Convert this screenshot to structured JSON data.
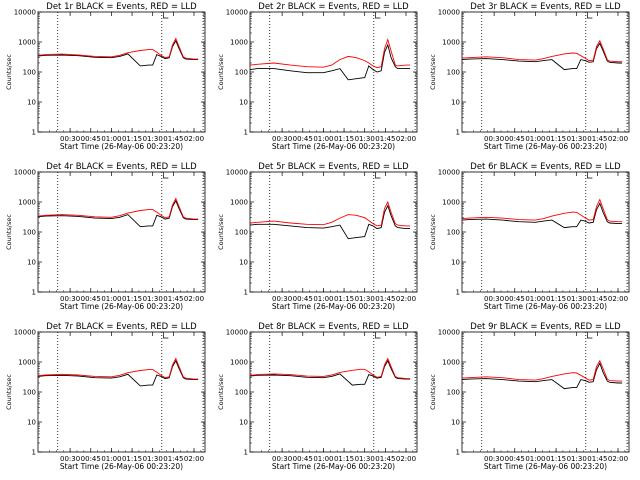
{
  "chart_data": [
    {
      "type": "line",
      "title": "Det 1r BLACK = Events, RED = LLD",
      "xlabel": "Start Time (26-May-06 00:23:20)",
      "ylabel": "Counts/sec",
      "ylog": true,
      "ylim": [
        1,
        10000
      ],
      "yticks": [
        "1",
        "10",
        "100",
        "1000",
        "10000"
      ],
      "xticks": [
        "00:30",
        "00:45",
        "01:00",
        "01:15",
        "01:30",
        "01:45",
        "02:00"
      ],
      "xlim": [
        0.1111,
        2.1333
      ],
      "x": [
        0.1111,
        0.2,
        0.4,
        0.6,
        0.8,
        1.0,
        1.1,
        1.2,
        1.35,
        1.45,
        1.5,
        1.55,
        1.6,
        1.65,
        1.7,
        1.74,
        1.78,
        1.82,
        1.87,
        1.9,
        2.0,
        2.05
      ],
      "vlines": [
        0.35,
        1.61,
        2.11
      ],
      "series": [
        {
          "name": "Events",
          "color": "#000000",
          "values": [
            340,
            360,
            370,
            350,
            310,
            300,
            330,
            400,
            160,
            170,
            170,
            380,
            330,
            280,
            300,
            700,
            1100,
            600,
            300,
            270,
            260,
            260
          ]
        },
        {
          "name": "LLD",
          "color": "#ff0000",
          "values": [
            360,
            380,
            395,
            370,
            330,
            320,
            360,
            440,
            520,
            560,
            560,
            460,
            360,
            300,
            320,
            800,
            1300,
            700,
            320,
            290,
            270,
            270
          ]
        }
      ]
    },
    {
      "type": "line",
      "title": "Det 2r BLACK = Events, RED = LLD",
      "xlabel": "Start Time (26-May-06 00:23:20)",
      "ylabel": "Counts/sec",
      "ylog": true,
      "ylim": [
        1,
        10000
      ],
      "yticks": [
        "1",
        "10",
        "100",
        "1000",
        "10000"
      ],
      "xticks": [
        "00:30",
        "00:45",
        "01:00",
        "01:15",
        "01:30",
        "01:45",
        "02:00"
      ],
      "xlim": [
        0.1111,
        2.1333
      ],
      "x": [
        0.1111,
        0.2,
        0.4,
        0.6,
        0.8,
        1.0,
        1.1,
        1.2,
        1.3,
        1.4,
        1.5,
        1.55,
        1.6,
        1.65,
        1.7,
        1.74,
        1.78,
        1.82,
        1.87,
        1.9,
        2.0,
        2.05
      ],
      "vlines": [
        0.35,
        1.61,
        2.11
      ],
      "series": [
        {
          "name": "Events",
          "color": "#000000",
          "values": [
            120,
            130,
            130,
            110,
            95,
            95,
            110,
            130,
            55,
            60,
            65,
            160,
            120,
            100,
            110,
            450,
            800,
            300,
            150,
            130,
            130,
            130
          ]
        },
        {
          "name": "LLD",
          "color": "#ff0000",
          "values": [
            170,
            180,
            200,
            170,
            150,
            145,
            170,
            260,
            330,
            300,
            240,
            200,
            160,
            140,
            150,
            600,
            1200,
            500,
            170,
            160,
            170,
            170
          ]
        }
      ]
    },
    {
      "type": "line",
      "title": "Det 3r BLACK = Events, RED = LLD",
      "xlabel": "Start Time (26-May-06 00:23:20)",
      "ylabel": "Counts/sec",
      "ylog": true,
      "ylim": [
        1,
        10000
      ],
      "yticks": [
        "1",
        "10",
        "100",
        "1000",
        "10000"
      ],
      "xticks": [
        "00:30",
        "00:45",
        "01:00",
        "01:15",
        "01:30",
        "01:45",
        "02:00"
      ],
      "xlim": [
        0.1111,
        2.1333
      ],
      "x": [
        0.1111,
        0.2,
        0.4,
        0.6,
        0.8,
        1.0,
        1.1,
        1.2,
        1.35,
        1.45,
        1.5,
        1.55,
        1.6,
        1.65,
        1.7,
        1.74,
        1.78,
        1.82,
        1.87,
        1.9,
        2.0,
        2.05
      ],
      "vlines": [
        0.35,
        1.61,
        2.11
      ],
      "series": [
        {
          "name": "Events",
          "color": "#000000",
          "values": [
            260,
            270,
            280,
            260,
            230,
            220,
            240,
            260,
            120,
            130,
            130,
            260,
            240,
            210,
            220,
            600,
            900,
            500,
            230,
            210,
            200,
            200
          ]
        },
        {
          "name": "LLD",
          "color": "#ff0000",
          "values": [
            290,
            300,
            320,
            300,
            260,
            250,
            280,
            330,
            400,
            430,
            420,
            350,
            290,
            240,
            250,
            700,
            1100,
            600,
            260,
            230,
            220,
            220
          ]
        }
      ]
    },
    {
      "type": "line",
      "title": "Det 4r BLACK = Events, RED = LLD",
      "xlabel": "Start Time (26-May-06 00:23:20)",
      "ylabel": "Counts/sec",
      "ylog": true,
      "ylim": [
        1,
        10000
      ],
      "yticks": [
        "1",
        "10",
        "100",
        "1000",
        "10000"
      ],
      "xticks": [
        "00:30",
        "00:45",
        "01:00",
        "01:15",
        "01:30",
        "01:45",
        "02:00"
      ],
      "xlim": [
        0.1111,
        2.1333
      ],
      "x": [
        0.1111,
        0.2,
        0.4,
        0.6,
        0.8,
        1.0,
        1.1,
        1.2,
        1.35,
        1.45,
        1.5,
        1.55,
        1.6,
        1.65,
        1.7,
        1.74,
        1.78,
        1.82,
        1.87,
        1.9,
        2.0,
        2.05
      ],
      "vlines": [
        0.35,
        1.61,
        2.11
      ],
      "series": [
        {
          "name": "Events",
          "color": "#000000",
          "values": [
            320,
            340,
            350,
            330,
            290,
            280,
            310,
            380,
            150,
            160,
            160,
            360,
            320,
            270,
            290,
            700,
            1100,
            600,
            300,
            270,
            260,
            260
          ]
        },
        {
          "name": "LLD",
          "color": "#ff0000",
          "values": [
            340,
            360,
            380,
            360,
            320,
            310,
            350,
            430,
            520,
            560,
            560,
            460,
            360,
            300,
            320,
            800,
            1300,
            700,
            320,
            290,
            270,
            270
          ]
        }
      ]
    },
    {
      "type": "line",
      "title": "Det 5r BLACK = Events, RED = LLD",
      "xlabel": "Start Time (26-May-06 00:23:20)",
      "ylabel": "Counts/sec",
      "ylog": true,
      "ylim": [
        1,
        10000
      ],
      "yticks": [
        "1",
        "10",
        "100",
        "1000",
        "10000"
      ],
      "xticks": [
        "00:30",
        "00:45",
        "01:00",
        "01:15",
        "01:30",
        "01:45",
        "02:00"
      ],
      "xlim": [
        0.1111,
        2.1333
      ],
      "x": [
        0.1111,
        0.2,
        0.4,
        0.6,
        0.8,
        1.0,
        1.1,
        1.2,
        1.3,
        1.4,
        1.5,
        1.55,
        1.6,
        1.65,
        1.7,
        1.74,
        1.78,
        1.82,
        1.87,
        1.9,
        2.0,
        2.05
      ],
      "vlines": [
        0.35,
        1.61,
        2.11
      ],
      "series": [
        {
          "name": "Events",
          "color": "#000000",
          "values": [
            170,
            180,
            180,
            160,
            140,
            135,
            150,
            170,
            60,
            65,
            70,
            180,
            160,
            130,
            140,
            450,
            750,
            350,
            160,
            140,
            130,
            130
          ]
        },
        {
          "name": "LLD",
          "color": "#ff0000",
          "values": [
            200,
            210,
            230,
            200,
            180,
            175,
            210,
            290,
            380,
            360,
            300,
            240,
            190,
            160,
            170,
            600,
            1000,
            450,
            190,
            170,
            160,
            160
          ]
        }
      ]
    },
    {
      "type": "line",
      "title": "Det 6r BLACK = Events, RED = LLD",
      "xlabel": "Start Time (26-May-06 00:23:20)",
      "ylabel": "Counts/sec",
      "ylog": true,
      "ylim": [
        1,
        10000
      ],
      "yticks": [
        "1",
        "10",
        "100",
        "1000",
        "10000"
      ],
      "xticks": [
        "00:30",
        "00:45",
        "01:00",
        "01:15",
        "01:30",
        "01:45",
        "02:00"
      ],
      "xlim": [
        0.1111,
        2.1333
      ],
      "x": [
        0.1111,
        0.2,
        0.4,
        0.6,
        0.8,
        1.0,
        1.1,
        1.2,
        1.35,
        1.45,
        1.5,
        1.55,
        1.6,
        1.65,
        1.7,
        1.74,
        1.78,
        1.82,
        1.87,
        1.9,
        2.0,
        2.05
      ],
      "vlines": [
        0.35,
        1.61,
        2.11
      ],
      "series": [
        {
          "name": "Events",
          "color": "#000000",
          "values": [
            250,
            260,
            270,
            250,
            220,
            210,
            230,
            250,
            140,
            150,
            150,
            250,
            230,
            200,
            210,
            550,
            900,
            450,
            220,
            200,
            190,
            190
          ]
        },
        {
          "name": "LLD",
          "color": "#ff0000",
          "values": [
            280,
            290,
            310,
            290,
            260,
            250,
            280,
            340,
            420,
            460,
            450,
            370,
            300,
            250,
            260,
            700,
            1200,
            600,
            260,
            230,
            220,
            220
          ]
        }
      ]
    },
    {
      "type": "line",
      "title": "Det 7r BLACK = Events, RED = LLD",
      "xlabel": "Start Time (26-May-06 00:23:20)",
      "ylabel": "Counts/sec",
      "ylog": true,
      "ylim": [
        1,
        10000
      ],
      "yticks": [
        "1",
        "10",
        "100",
        "1000",
        "10000"
      ],
      "xticks": [
        "00:30",
        "00:45",
        "01:00",
        "01:15",
        "01:30",
        "01:45",
        "02:00"
      ],
      "xlim": [
        0.1111,
        2.1333
      ],
      "x": [
        0.1111,
        0.2,
        0.4,
        0.6,
        0.8,
        1.0,
        1.1,
        1.2,
        1.35,
        1.45,
        1.5,
        1.55,
        1.6,
        1.65,
        1.7,
        1.74,
        1.78,
        1.82,
        1.87,
        1.9,
        2.0,
        2.05
      ],
      "vlines": [
        0.35,
        1.61,
        2.11
      ],
      "series": [
        {
          "name": "Events",
          "color": "#000000",
          "values": [
            330,
            350,
            360,
            340,
            300,
            290,
            320,
            390,
            160,
            170,
            170,
            370,
            330,
            280,
            300,
            700,
            1100,
            600,
            300,
            270,
            260,
            260
          ]
        },
        {
          "name": "LLD",
          "color": "#ff0000",
          "values": [
            350,
            370,
            390,
            370,
            330,
            320,
            360,
            440,
            520,
            560,
            560,
            460,
            360,
            300,
            320,
            800,
            1300,
            700,
            320,
            290,
            270,
            270
          ]
        }
      ]
    },
    {
      "type": "line",
      "title": "Det 8r BLACK = Events, RED = LLD",
      "xlabel": "Start Time (26-May-06 00:23:20)",
      "ylabel": "Counts/sec",
      "ylog": true,
      "ylim": [
        1,
        10000
      ],
      "yticks": [
        "1",
        "10",
        "100",
        "1000",
        "10000"
      ],
      "xticks": [
        "00:30",
        "00:45",
        "01:00",
        "01:15",
        "01:30",
        "01:45",
        "02:00"
      ],
      "xlim": [
        0.1111,
        2.1333
      ],
      "x": [
        0.1111,
        0.2,
        0.4,
        0.6,
        0.8,
        1.0,
        1.1,
        1.2,
        1.35,
        1.45,
        1.5,
        1.55,
        1.6,
        1.65,
        1.7,
        1.74,
        1.78,
        1.82,
        1.87,
        1.9,
        2.0,
        2.05
      ],
      "vlines": [
        0.35,
        1.61,
        2.11
      ],
      "series": [
        {
          "name": "Events",
          "color": "#000000",
          "values": [
            340,
            360,
            370,
            350,
            310,
            300,
            330,
            400,
            170,
            180,
            180,
            380,
            340,
            290,
            310,
            700,
            1100,
            600,
            310,
            280,
            270,
            270
          ]
        },
        {
          "name": "LLD",
          "color": "#ff0000",
          "values": [
            360,
            380,
            400,
            380,
            340,
            330,
            370,
            450,
            530,
            570,
            570,
            470,
            370,
            310,
            330,
            800,
            1300,
            700,
            330,
            300,
            280,
            280
          ]
        }
      ]
    },
    {
      "type": "line",
      "title": "Det 9r BLACK = Events, RED = LLD",
      "xlabel": "Start Time (26-May-06 00:23:20)",
      "ylabel": "Counts/sec",
      "ylog": true,
      "ylim": [
        1,
        10000
      ],
      "yticks": [
        "1",
        "10",
        "100",
        "1000",
        "10000"
      ],
      "xticks": [
        "00:30",
        "00:45",
        "01:00",
        "01:15",
        "01:30",
        "01:45",
        "02:00"
      ],
      "xlim": [
        0.1111,
        2.1333
      ],
      "x": [
        0.1111,
        0.2,
        0.4,
        0.6,
        0.8,
        1.0,
        1.1,
        1.2,
        1.35,
        1.45,
        1.5,
        1.55,
        1.6,
        1.65,
        1.7,
        1.74,
        1.78,
        1.82,
        1.87,
        1.9,
        2.0,
        2.05
      ],
      "vlines": [
        0.35,
        1.61,
        2.11
      ],
      "series": [
        {
          "name": "Events",
          "color": "#000000",
          "values": [
            260,
            270,
            280,
            260,
            230,
            220,
            240,
            260,
            130,
            140,
            140,
            260,
            240,
            210,
            220,
            550,
            900,
            450,
            230,
            210,
            200,
            200
          ]
        },
        {
          "name": "LLD",
          "color": "#ff0000",
          "values": [
            290,
            300,
            320,
            300,
            260,
            250,
            280,
            330,
            400,
            440,
            430,
            360,
            300,
            250,
            260,
            700,
            1100,
            600,
            270,
            240,
            230,
            230
          ]
        }
      ]
    }
  ]
}
